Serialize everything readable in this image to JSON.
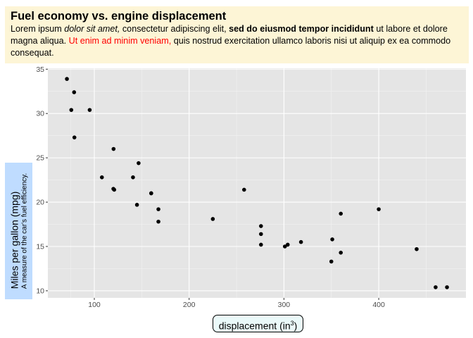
{
  "header": {
    "title": "Fuel economy vs. engine displacement",
    "subtitle": {
      "p1": "Lorem ipsum ",
      "p2_italic": "dolor sit amet,",
      "p3": " consectetur adipiscing elit, ",
      "p4_bold": "sed do eiusmod tempor incididunt",
      "p5": " ut labore et dolore magna aliqua. ",
      "p6_red": "Ut enim ad minim veniam,",
      "p7": " quis nostrud exercitation ullamco laboris nisi ut aliquip ex ea commodo consequat."
    }
  },
  "colors": {
    "header_bg": "#fdf5d6",
    "ylabel_bg": "#bfdcff",
    "xlabel_bg": "#eaf9f9",
    "panel": "#e5e5e5",
    "point": "#000000",
    "highlight": "#ff0000"
  },
  "chart_data": {
    "type": "scatter",
    "title": "Fuel economy vs. engine displacement",
    "xlabel": "displacement (in",
    "xlabel_sup": "3",
    "xlabel_close": ")",
    "ylabel": "Miles per gallon (mpg)",
    "ylabel_sub": "A measure of the car's fuel efficiency.",
    "xlim": [
      51,
      492
    ],
    "ylim": [
      9.2,
      35.1
    ],
    "xticks": [
      100,
      200,
      300,
      400
    ],
    "yticks": [
      10,
      15,
      20,
      25,
      30,
      35
    ],
    "grid": true,
    "x": [
      160,
      160,
      108,
      258,
      360,
      225,
      360,
      146.7,
      140.8,
      167.6,
      167.6,
      275.8,
      275.8,
      275.8,
      472,
      460,
      440,
      78.7,
      75.7,
      71.1,
      120.1,
      318,
      304,
      350,
      400,
      79,
      120.3,
      95.1,
      351,
      145,
      301,
      121
    ],
    "y": [
      21.0,
      21.0,
      22.8,
      21.4,
      18.7,
      18.1,
      14.3,
      24.4,
      22.8,
      19.2,
      17.8,
      16.4,
      17.3,
      15.2,
      10.4,
      10.4,
      14.7,
      32.4,
      30.4,
      33.9,
      21.5,
      15.5,
      15.2,
      13.3,
      19.2,
      27.3,
      26.0,
      30.4,
      15.8,
      19.7,
      15.0,
      21.4
    ]
  }
}
